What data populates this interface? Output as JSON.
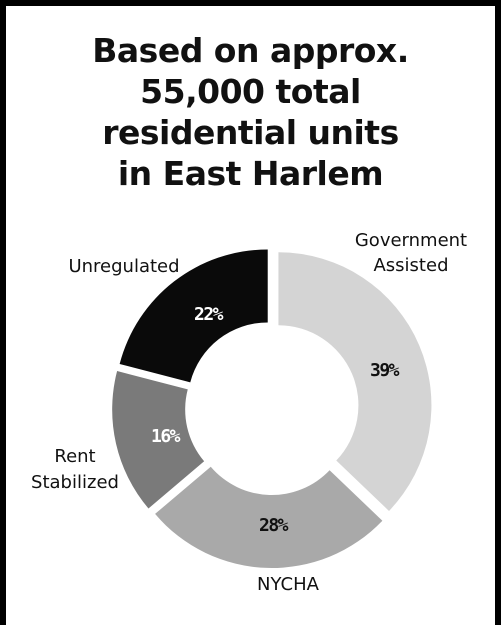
{
  "chart_data": {
    "type": "pie",
    "title_lines": [
      "Based on approx.",
      "55,000 total",
      "residential units",
      "in East Harlem"
    ],
    "slices": [
      {
        "label_lines": [
          "Government",
          "Assisted"
        ],
        "value": 39,
        "value_label": "39%",
        "color": "#d4d4d4",
        "text_color": "#111111"
      },
      {
        "label_lines": [
          "NYCHA"
        ],
        "value": 28,
        "value_label": "28%",
        "color": "#a9a9a9",
        "text_color": "#111111"
      },
      {
        "label_lines": [
          "Rent",
          "Stabilized"
        ],
        "value": 16,
        "value_label": "16%",
        "color": "#7a7a7a",
        "text_color": "#ffffff"
      },
      {
        "label_lines": [
          "Unregulated"
        ],
        "value": 22,
        "value_label": "22%",
        "color": "#0a0a0a",
        "text_color": "#ffffff"
      }
    ],
    "donut": true,
    "start": "top",
    "direction": "clockwise",
    "legend": "none"
  }
}
